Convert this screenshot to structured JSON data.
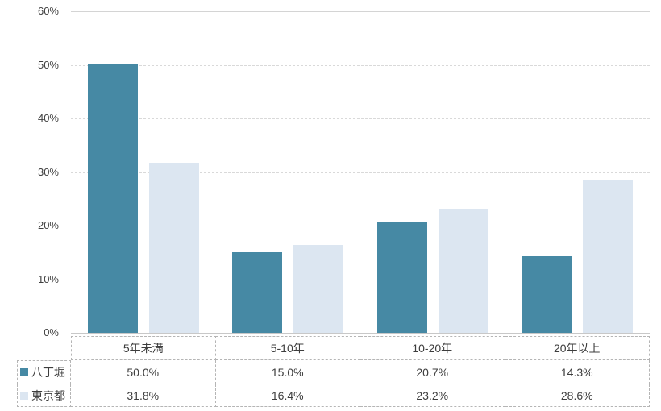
{
  "chart_data": {
    "type": "bar",
    "title": "",
    "xlabel": "",
    "ylabel": "",
    "categories": [
      "5年未満",
      "5-10年",
      "10-20年",
      "20年以上"
    ],
    "series": [
      {
        "name": "八丁堀",
        "values": [
          50.0,
          15.0,
          20.7,
          14.3
        ],
        "labels": [
          "50.0%",
          "15.0%",
          "20.7%",
          "14.3%"
        ],
        "color": "#4689A4"
      },
      {
        "name": "東京都",
        "values": [
          31.8,
          16.4,
          23.2,
          28.6
        ],
        "labels": [
          "31.8%",
          "16.4%",
          "23.2%",
          "28.6%"
        ],
        "color": "#DCE6F1"
      }
    ],
    "ylim": [
      0,
      60
    ],
    "ytick_step": 10,
    "yticks": [
      {
        "value": 60,
        "label": "60%"
      },
      {
        "value": 50,
        "label": "50%"
      },
      {
        "value": 40,
        "label": "40%"
      },
      {
        "value": 30,
        "label": "30%"
      },
      {
        "value": 20,
        "label": "20%"
      },
      {
        "value": 10,
        "label": "10%"
      },
      {
        "value": 0,
        "label": "0%"
      }
    ],
    "grid": true,
    "legend_position": "table-left"
  },
  "colors": {
    "series1": "#4689A4",
    "series2": "#DCE6F1",
    "gridline": "#D9D9D9",
    "axis_line": "#C8C8C8",
    "table_border": "#B5B5B5",
    "text": "#404040"
  }
}
